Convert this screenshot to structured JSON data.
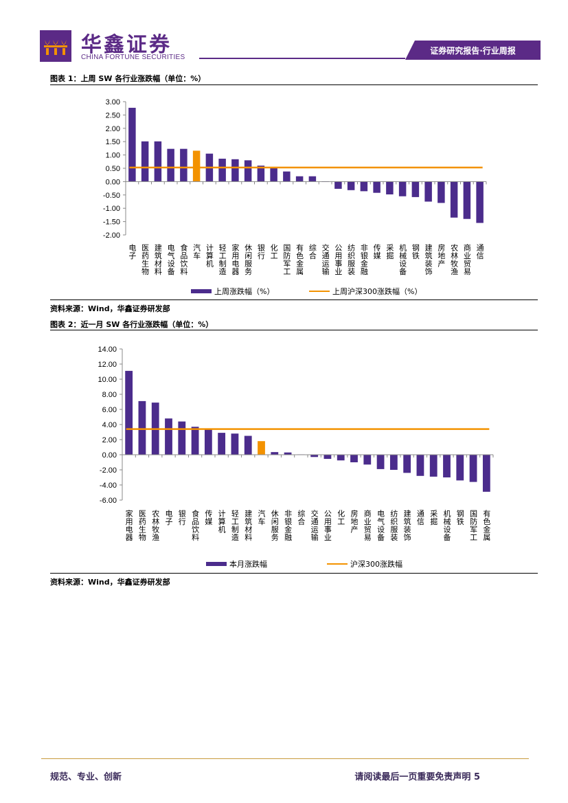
{
  "header": {
    "brand_cn": "华鑫证券",
    "brand_en": "CHINA FORTUNE SECURITIES",
    "report_tag": "证券研究报告·行业周报"
  },
  "figure1": {
    "title": "图表 1：上周 SW 各行业涨跌幅（单位：%）",
    "source": "资料来源：Wind，华鑫证券研发部"
  },
  "figure2": {
    "title": "图表 2：近一月 SW 各行业涨跌幅（单位：%）",
    "source": "资料来源：Wind，华鑫证券研发部"
  },
  "footer": {
    "left": "规范、专业、创新",
    "right": "请阅读最后一页重要免责声明 5"
  },
  "colors": {
    "brand": "#5b2a86",
    "bar": "#4b2c8c",
    "highlight": "#f39200",
    "line": "#f39200"
  },
  "chart_data": [
    {
      "type": "bar",
      "categories": [
        "电子",
        "医药生物",
        "建筑材料",
        "电气设备",
        "食品饮料",
        "汽车",
        "计算机",
        "轻工制造",
        "家用电器",
        "休闲服务",
        "银行",
        "化工",
        "国防军工",
        "有色金属",
        "综合",
        "交通运输",
        "公用事业",
        "纺织服装",
        "非银金融",
        "传媒",
        "采掘",
        "机械设备",
        "钢铁",
        "建筑装饰",
        "房地产",
        "农林牧渔",
        "商业贸易",
        "通信"
      ],
      "series": [
        {
          "name": "上周涨跌幅（%）",
          "values": [
            2.77,
            1.51,
            1.51,
            1.23,
            1.23,
            1.16,
            1.05,
            0.86,
            0.84,
            0.8,
            0.6,
            0.5,
            0.38,
            0.2,
            0.2,
            0.0,
            -0.27,
            -0.32,
            -0.36,
            -0.42,
            -0.48,
            -0.55,
            -0.58,
            -0.75,
            -0.8,
            -1.35,
            -1.4,
            -1.55
          ]
        }
      ],
      "reference_line": {
        "name": "上周沪深300涨跌幅（%）",
        "value": 0.53
      },
      "highlight_category": "汽车",
      "yticks": [
        "3.00",
        "2.50",
        "2.00",
        "1.50",
        "1.00",
        "0.50",
        "0.00",
        "-0.50",
        "-1.00",
        "-1.50",
        "-2.00"
      ],
      "ylim": [
        -2,
        3
      ],
      "legend_position": "bottom"
    },
    {
      "type": "bar",
      "categories": [
        "家用电器",
        "医药生物",
        "农林牧渔",
        "电子",
        "银行",
        "食品饮料",
        "传媒",
        "计算机",
        "轻工制造",
        "建筑材料",
        "汽车",
        "休闲服务",
        "非银金融",
        "综合",
        "交通运输",
        "公用事业",
        "化工",
        "房地产",
        "商业贸易",
        "电气设备",
        "纺织服装",
        "建筑装饰",
        "通信",
        "采掘",
        "机械设备",
        "钢铁",
        "国防军工",
        "有色金属"
      ],
      "series": [
        {
          "name": "本月涨跌幅",
          "values": [
            11.1,
            7.1,
            6.9,
            4.8,
            4.4,
            3.7,
            3.4,
            2.9,
            2.8,
            2.5,
            1.8,
            0.35,
            0.3,
            0.05,
            -0.3,
            -0.55,
            -0.75,
            -1.0,
            -1.3,
            -1.9,
            -2.0,
            -2.4,
            -2.8,
            -2.9,
            -3.0,
            -3.4,
            -3.6,
            -4.9
          ]
        }
      ],
      "reference_line": {
        "name": "沪深300涨跌幅",
        "value": 3.4
      },
      "highlight_category": "汽车",
      "yticks": [
        "14.00",
        "12.00",
        "10.00",
        "8.00",
        "6.00",
        "4.00",
        "2.00",
        "0.00",
        "-2.00",
        "-4.00",
        "-6.00"
      ],
      "ylim": [
        -6,
        14
      ],
      "legend_position": "bottom"
    }
  ]
}
